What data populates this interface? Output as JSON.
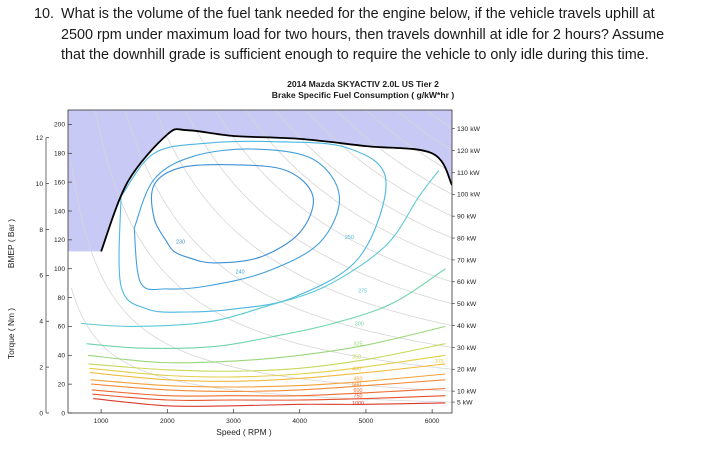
{
  "question": {
    "number": "10.",
    "lines": [
      "What is the volume of the fuel tank needed for the engine below, if the vehicle travels uphill at",
      "2500 rpm under maximum load for two hours, then travels downhill at idle for 2 hours? Assume",
      "that the downhill grade is sufficient enough to require the vehicle to only idle during this time."
    ]
  },
  "chart_data": {
    "type": "contour",
    "title": "2014 Mazda SKYACTIV 2.0L US Tier 2",
    "subtitle": "Brake Specific Fuel Consumption ( g/kW*hr )",
    "xlabel": "Speed ( RPM )",
    "ylabel_left_outer": "Torque ( Nm )",
    "ylabel_left_inner": "BMEP ( Bar )",
    "x_ticks": [
      "1000",
      "2000",
      "3000",
      "4000",
      "5000",
      "6000"
    ],
    "torque_ticks": [
      "0",
      "20",
      "40",
      "60",
      "80",
      "100",
      "120",
      "140",
      "160",
      "180",
      "200"
    ],
    "bmep_ticks": [
      "0",
      "2",
      "4",
      "6",
      "8",
      "10",
      "12"
    ],
    "xlim": [
      500,
      6300
    ],
    "ylim": [
      0,
      210
    ],
    "max_torque_curve": [
      [
        1000,
        112
      ],
      [
        1400,
        160
      ],
      [
        2000,
        193
      ],
      [
        2300,
        196
      ],
      [
        3000,
        192
      ],
      [
        4000,
        190
      ],
      [
        5000,
        185
      ],
      [
        6000,
        180
      ],
      [
        6300,
        158
      ]
    ],
    "bsfc_contours": [
      {
        "level": "230",
        "label_pos": [
          2200,
          119
        ],
        "points": [
          [
            2000,
            118
          ],
          [
            1800,
            135
          ],
          [
            1800,
            158
          ],
          [
            2200,
            170
          ],
          [
            3000,
            172
          ],
          [
            3800,
            168
          ],
          [
            4200,
            150
          ],
          [
            4000,
            125
          ],
          [
            3400,
            108
          ],
          [
            2700,
            104
          ],
          [
            2300,
            108
          ],
          [
            2100,
            112
          ],
          [
            2000,
            118
          ]
        ]
      },
      {
        "level": "240",
        "label_pos": [
          3100,
          98
        ],
        "points": [
          [
            1500,
            128
          ],
          [
            1800,
            162
          ],
          [
            2400,
            178
          ],
          [
            3300,
            183
          ],
          [
            4200,
            176
          ],
          [
            4600,
            150
          ],
          [
            4300,
            118
          ],
          [
            3500,
            98
          ],
          [
            2600,
            88
          ],
          [
            2000,
            86
          ],
          [
            1600,
            90
          ],
          [
            1500,
            128
          ]
        ]
      },
      {
        "level": "250",
        "label_pos": [
          4750,
          122
        ],
        "points": [
          [
            1300,
            150
          ],
          [
            1800,
            180
          ],
          [
            2600,
            187
          ],
          [
            3600,
            188
          ],
          [
            4700,
            184
          ],
          [
            5300,
            162
          ],
          [
            4900,
            108
          ],
          [
            3900,
            80
          ],
          [
            3000,
            72
          ],
          [
            2300,
            70
          ],
          [
            1700,
            72
          ],
          [
            1300,
            88
          ],
          [
            1300,
            150
          ]
        ]
      },
      {
        "level": "275",
        "label_pos": [
          4950,
          85
        ],
        "points": [
          [
            700,
            62
          ],
          [
            1500,
            60
          ],
          [
            2600,
            63
          ],
          [
            3500,
            74
          ],
          [
            4400,
            88
          ],
          [
            5300,
            116
          ],
          [
            5800,
            150
          ],
          [
            6100,
            168
          ]
        ]
      },
      {
        "level": "300",
        "label_pos": [
          4900,
          62
        ],
        "points": [
          [
            780,
            48
          ],
          [
            1600,
            45
          ],
          [
            2700,
            46
          ],
          [
            3600,
            53
          ],
          [
            4500,
            62
          ],
          [
            5400,
            76
          ],
          [
            6200,
            100
          ]
        ]
      },
      {
        "level": "325",
        "label_pos": [
          4880,
          48
        ],
        "points": [
          [
            800,
            40
          ],
          [
            1900,
            35
          ],
          [
            3000,
            36
          ],
          [
            4000,
            40
          ],
          [
            5000,
            47
          ],
          [
            6200,
            60
          ]
        ]
      },
      {
        "level": "350",
        "label_pos": [
          4860,
          39
        ],
        "points": [
          [
            810,
            34
          ],
          [
            1950,
            30
          ],
          [
            3000,
            29
          ],
          [
            4000,
            31
          ],
          [
            5000,
            37
          ],
          [
            6200,
            48
          ]
        ]
      },
      {
        "level": "375",
        "label_pos": [
          6110,
          36
        ],
        "points": [
          [
            820,
            31
          ],
          [
            2000,
            26
          ],
          [
            3000,
            25
          ],
          [
            4000,
            27
          ],
          [
            5000,
            32
          ],
          [
            6200,
            40
          ]
        ]
      },
      {
        "level": "400",
        "label_pos": [
          4860,
          31
        ],
        "points": [
          [
            830,
            28
          ],
          [
            2000,
            23
          ],
          [
            3000,
            22
          ],
          [
            4000,
            24
          ],
          [
            5000,
            28
          ],
          [
            6200,
            34
          ]
        ]
      },
      {
        "level": "450",
        "label_pos": [
          4880,
          24
        ],
        "points": [
          [
            840,
            23
          ],
          [
            2000,
            19
          ],
          [
            3000,
            18
          ],
          [
            4000,
            19
          ],
          [
            5000,
            22
          ],
          [
            6200,
            27
          ]
        ]
      },
      {
        "level": "500",
        "label_pos": [
          4860,
          20
        ],
        "points": [
          [
            850,
            20
          ],
          [
            2000,
            16
          ],
          [
            3000,
            15
          ],
          [
            4000,
            16
          ],
          [
            5000,
            19
          ],
          [
            6200,
            23
          ]
        ]
      },
      {
        "level": "600",
        "label_pos": [
          4880,
          16
        ],
        "points": [
          [
            860,
            16
          ],
          [
            2000,
            12
          ],
          [
            3000,
            12
          ],
          [
            4000,
            12
          ],
          [
            5000,
            14
          ],
          [
            6200,
            17
          ]
        ]
      },
      {
        "level": "750",
        "label_pos": [
          4880,
          12
        ],
        "points": [
          [
            870,
            13
          ],
          [
            2000,
            9
          ],
          [
            3000,
            9
          ],
          [
            4000,
            9
          ],
          [
            5000,
            10
          ],
          [
            6200,
            12
          ]
        ]
      },
      {
        "level": "1000",
        "label_pos": [
          4880,
          7
        ],
        "points": [
          [
            880,
            10
          ],
          [
            2000,
            5
          ],
          [
            3000,
            5
          ],
          [
            4000,
            6
          ],
          [
            5000,
            6
          ],
          [
            6200,
            7
          ]
        ]
      }
    ],
    "power_lines": [
      {
        "label": "5 kW",
        "kw": 5
      },
      {
        "label": "10 kW",
        "kw": 10
      },
      {
        "label": "20 kW",
        "kw": 20
      },
      {
        "label": "30 kW",
        "kw": 30
      },
      {
        "label": "40 kW",
        "kw": 40
      },
      {
        "label": "50 kW",
        "kw": 50
      },
      {
        "label": "60 kW",
        "kw": 60
      },
      {
        "label": "70 kW",
        "kw": 70
      },
      {
        "label": "80 kW",
        "kw": 80
      },
      {
        "label": "90 kW",
        "kw": 90
      },
      {
        "label": "100 kW",
        "kw": 100
      },
      {
        "label": "110 kW",
        "kw": 110
      },
      {
        "label": "120 kW",
        "kw": 120
      },
      {
        "label": "130 kW",
        "kw": 130
      }
    ],
    "contour_colors": {
      "230": "#3d8fd6",
      "240": "#43a0dc",
      "250": "#4cb7e0",
      "275": "#5ccad6",
      "300": "#6fd4a8",
      "325": "#9ad77a",
      "350": "#c8d85a",
      "375": "#e4cf4a",
      "400": "#f0bb3f",
      "450": "#f3a13a",
      "500": "#f28a37",
      "600": "#ef6d33",
      "750": "#e8512f",
      "1000": "#d93a2b"
    },
    "colors": {
      "infeasible_fill": "#c9c9f5",
      "max_torque_line": "#000000",
      "power_line": "#d6d6d6",
      "axis": "#333333"
    }
  }
}
